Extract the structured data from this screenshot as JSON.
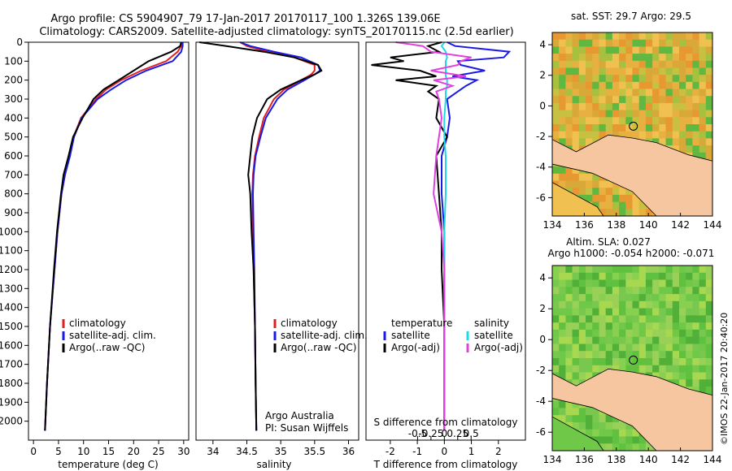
{
  "header": {
    "line1": "Argo profile: CS 5904907_79 17-Jan-2017 20170117_100 1.326S 139.06E",
    "line2": "Climatology: CARS2009. Satellite-adjusted climatology: synTS_20170115.nc (2.5d earlier)"
  },
  "colors": {
    "climatology": "#e02020",
    "satellite": "#1a1ae6",
    "argo": "#000000",
    "salinity_satellite": "#20d8e8",
    "salinity_argo": "#e040e0",
    "land": "#f5c6a0"
  },
  "chart_data": [
    {
      "type": "line",
      "panel": "temperature",
      "xlabel": "temperature (deg C)",
      "xlim": [
        -1,
        31
      ],
      "xticks": [
        0,
        5,
        10,
        15,
        20,
        25,
        30
      ],
      "ylim": [
        0,
        2100
      ],
      "yticks": [
        0,
        100,
        200,
        300,
        400,
        500,
        600,
        700,
        800,
        900,
        1000,
        1100,
        1200,
        1300,
        1400,
        1500,
        1600,
        1700,
        1800,
        1900,
        2000
      ],
      "depth": [
        0,
        20,
        50,
        100,
        150,
        200,
        250,
        300,
        400,
        500,
        600,
        700,
        800,
        1000,
        1200,
        1500,
        1800,
        2050
      ],
      "series": [
        {
          "key": "climatology",
          "values": [
            29.6,
            29.5,
            28.8,
            26.5,
            21.5,
            17.5,
            14.5,
            12.5,
            9.5,
            8.0,
            7.2,
            6.3,
            5.6,
            4.8,
            4.2,
            3.3,
            2.7,
            2.3
          ]
        },
        {
          "key": "satellite",
          "values": [
            29.8,
            29.8,
            29.5,
            27.8,
            22.5,
            18.5,
            15.5,
            12.8,
            9.6,
            8.1,
            7.3,
            6.3,
            5.6,
            4.8,
            4.2,
            3.3,
            2.7,
            2.3
          ]
        },
        {
          "key": "argo",
          "values": [
            29.5,
            29.3,
            27.5,
            23.0,
            20.0,
            17.0,
            14.0,
            12.0,
            9.8,
            7.9,
            7.0,
            6.0,
            5.5,
            4.7,
            4.1,
            3.3,
            2.7,
            2.3
          ]
        }
      ],
      "legend": [
        {
          "key": "climatology",
          "label": "climatology"
        },
        {
          "key": "satellite",
          "label": "satellite-adj. clim."
        },
        {
          "key": "argo",
          "label": "Argo(..raw -QC)"
        }
      ]
    },
    {
      "type": "line",
      "panel": "salinity",
      "xlabel": "salinity",
      "xlim": [
        33.75,
        36.15
      ],
      "xticks": [
        34,
        34.5,
        35,
        35.5,
        36
      ],
      "ylim": [
        0,
        2100
      ],
      "depth": [
        0,
        20,
        50,
        80,
        120,
        150,
        170,
        200,
        250,
        300,
        400,
        500,
        600,
        700,
        800,
        1000,
        1200,
        1500,
        1800,
        2050
      ],
      "series": [
        {
          "key": "climatology",
          "values": [
            34.4,
            34.5,
            34.8,
            35.2,
            35.5,
            35.5,
            35.45,
            35.3,
            35.05,
            34.9,
            34.75,
            34.68,
            34.62,
            34.59,
            34.58,
            34.59,
            34.6,
            34.62,
            34.63,
            34.64
          ]
        },
        {
          "key": "satellite",
          "values": [
            34.4,
            34.55,
            34.9,
            35.3,
            35.55,
            35.58,
            35.5,
            35.35,
            35.1,
            34.95,
            34.78,
            34.7,
            34.63,
            34.6,
            34.59,
            34.6,
            34.61,
            34.62,
            34.63,
            34.64
          ]
        },
        {
          "key": "argo",
          "values": [
            33.8,
            34.2,
            34.75,
            35.2,
            35.55,
            35.6,
            35.5,
            35.3,
            35.0,
            34.8,
            34.65,
            34.58,
            34.55,
            34.52,
            34.55,
            34.57,
            34.6,
            34.62,
            34.63,
            34.64
          ]
        }
      ],
      "legend": [
        {
          "key": "climatology",
          "label": "climatology"
        },
        {
          "key": "satellite",
          "label": "satellite-adj. clim."
        },
        {
          "key": "argo",
          "label": "Argo(..raw -QC)"
        }
      ],
      "annotation": [
        "Argo Australia",
        "PI: Susan Wijffels"
      ]
    },
    {
      "type": "line",
      "panel": "difference",
      "xlabel": "T difference from climatology",
      "top_axis_label": "S difference from climatology",
      "xlim": [
        -2.9,
        3.0
      ],
      "xticks": [
        -2,
        -1,
        0,
        1,
        2
      ],
      "top_xticks": [
        -0.5,
        -0.25,
        0,
        0.25,
        0.5
      ],
      "top_tick_labels": [
        "-0.5",
        "-0.25",
        "0",
        "0.25",
        "0.5"
      ],
      "ylim": [
        0,
        2100
      ],
      "depth": [
        0,
        20,
        50,
        80,
        100,
        120,
        150,
        180,
        200,
        230,
        260,
        300,
        400,
        500,
        600,
        800,
        1000,
        1200,
        1500,
        1800,
        2050
      ],
      "series": [
        {
          "key": "T_satellite",
          "values": [
            0.1,
            0.4,
            2.4,
            2.2,
            0.5,
            0.6,
            1.5,
            0.3,
            1.2,
            0.8,
            0.5,
            0.1,
            0.2,
            0.1,
            -0.1,
            -0.1,
            0.0,
            0.0,
            0.0,
            0.0,
            0.0
          ]
        },
        {
          "key": "T_argo",
          "values": [
            -0.1,
            -0.6,
            -0.2,
            -2.0,
            -1.5,
            -2.7,
            -0.9,
            -0.3,
            -1.8,
            -0.3,
            -0.6,
            -0.2,
            -0.3,
            0.1,
            -0.3,
            -0.2,
            -0.1,
            -0.1,
            0.0,
            0.0,
            0.0
          ]
        },
        {
          "key": "S_satellite",
          "values": [
            0.0,
            -0.1,
            0.05,
            0.1,
            0.05,
            0.05,
            0.05,
            0.05,
            0.1,
            0.1,
            0.05,
            0.05,
            0.0,
            0.0,
            0.05,
            0.05,
            0.0,
            0.0,
            0.0,
            0.0,
            0.0
          ]
        },
        {
          "key": "S_argo",
          "values": [
            -1.8,
            -0.8,
            -0.5,
            1.0,
            0.6,
            0.5,
            -0.5,
            0.8,
            -0.4,
            0.3,
            -0.3,
            -0.2,
            -0.1,
            -0.2,
            -0.3,
            -0.4,
            -0.1,
            0.0,
            0.0,
            0.0,
            0.0
          ]
        }
      ],
      "legend": {
        "temperature_title": "temperature",
        "salinity_title": "salinity",
        "temperature": [
          {
            "key": "T_satellite",
            "label": "satellite",
            "color_key": "satellite"
          },
          {
            "key": "T_argo",
            "label": "Argo(-adj)",
            "color_key": "argo"
          }
        ],
        "salinity": [
          {
            "key": "S_satellite",
            "label": "satellite",
            "color_key": "salinity_satellite"
          },
          {
            "key": "S_argo",
            "label": "Argo(-adj)",
            "color_key": "salinity_argo"
          }
        ]
      }
    },
    {
      "type": "heatmap",
      "panel": "sst_map",
      "title": "sat. SST: 29.7 Argo: 29.5",
      "xticks": [
        134,
        136,
        138,
        140,
        142,
        144
      ],
      "yticks": [
        4,
        2,
        0,
        -2,
        -4,
        -6
      ],
      "xlim": [
        134,
        144
      ],
      "ylim": [
        -7.2,
        4.8
      ],
      "profile_location": {
        "lon": 139.06,
        "lat": -1.326
      }
    },
    {
      "type": "heatmap",
      "panel": "sla_map",
      "title": [
        "Altim. SLA: 0.027",
        "Argo h1000: -0.054 h2000: -0.071"
      ],
      "xticks": [
        134,
        136,
        138,
        140,
        142,
        144
      ],
      "yticks": [
        4,
        2,
        0,
        -2,
        -4,
        -6
      ],
      "xlim": [
        134,
        144
      ],
      "ylim": [
        -7.2,
        4.8
      ],
      "profile_location": {
        "lon": 139.06,
        "lat": -1.326
      }
    }
  ],
  "footer": {
    "credit": "©IMOS 22-Jan-2017 20:40:20"
  }
}
